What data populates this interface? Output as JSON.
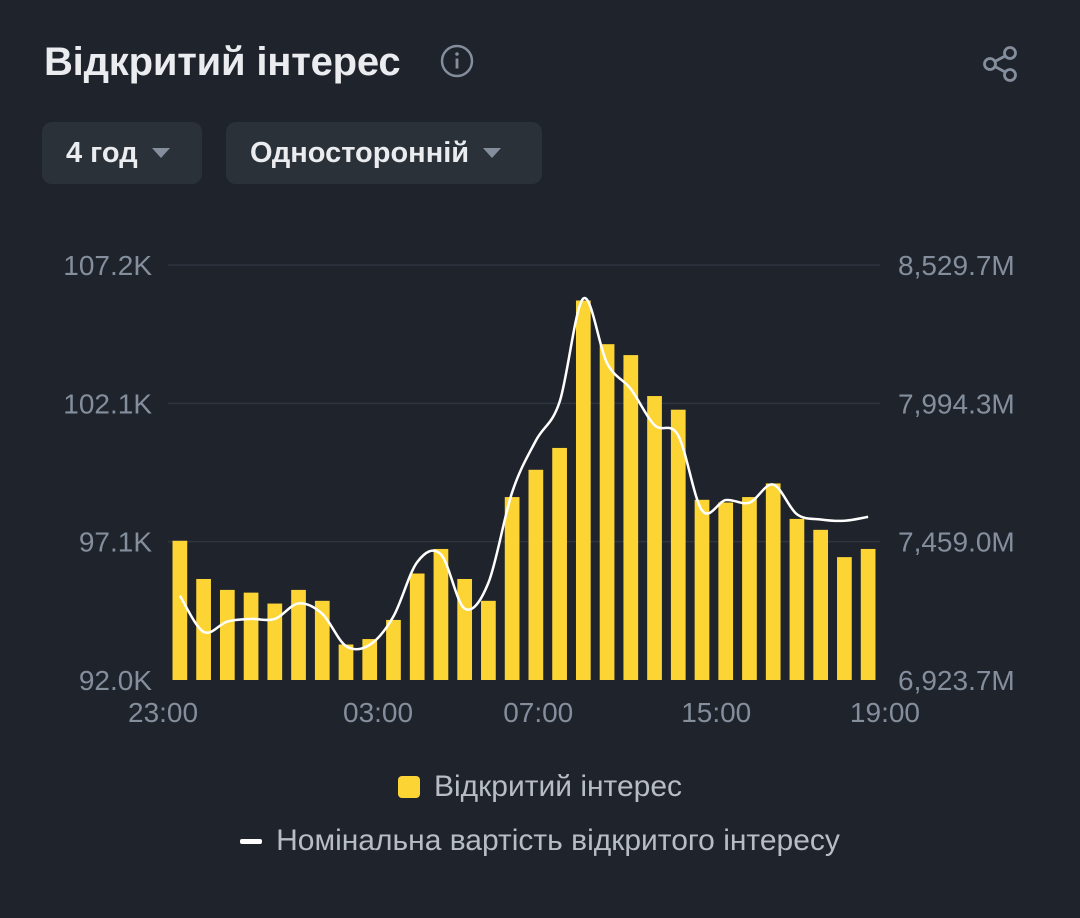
{
  "header": {
    "title": "Відкритий інтерес",
    "info_icon": "info-icon",
    "share_icon": "share-icon"
  },
  "controls": {
    "interval": "4 год",
    "mode": "Односторонній"
  },
  "colors": {
    "background": "#1f232c",
    "bar": "#fcd535",
    "line": "#ffffff",
    "grid": "#2e3440",
    "axis_text": "#848e9c"
  },
  "chart_data": {
    "type": "bar",
    "x_tick_labels": [
      "23:00",
      "03:00",
      "07:00",
      "15:00",
      "19:00"
    ],
    "y_left_ticks": [
      "92.0K",
      "97.1K",
      "102.1K",
      "107.2K"
    ],
    "y_right_ticks": [
      "6,923.7M",
      "7,459.0M",
      "7,994.3M",
      "8,529.7M"
    ],
    "ylim_left": [
      92000,
      107200
    ],
    "ylim_right": [
      6923.7,
      8529.7
    ],
    "grid": true,
    "legend_position": "bottom",
    "series": [
      {
        "name": "Відкритий інтерес",
        "type": "bar",
        "axis": "left",
        "values": [
          97.1,
          95.7,
          95.3,
          95.2,
          94.8,
          95.3,
          94.9,
          93.3,
          93.5,
          94.2,
          95.9,
          96.8,
          95.7,
          94.9,
          98.7,
          99.7,
          100.5,
          105.9,
          104.3,
          103.9,
          102.4,
          101.9,
          98.6,
          98.5,
          98.7,
          99.2,
          97.9,
          97.5,
          96.5,
          96.8
        ]
      },
      {
        "name": "Номінальна вартість відкритого інтересу",
        "type": "line",
        "axis": "right",
        "values": [
          7250,
          7110,
          7150,
          7160,
          7160,
          7220,
          7180,
          7055,
          7060,
          7170,
          7380,
          7410,
          7200,
          7300,
          7650,
          7850,
          8000,
          8400,
          8150,
          8050,
          7910,
          7870,
          7580,
          7620,
          7610,
          7680,
          7565,
          7545,
          7540,
          7555
        ]
      }
    ]
  }
}
